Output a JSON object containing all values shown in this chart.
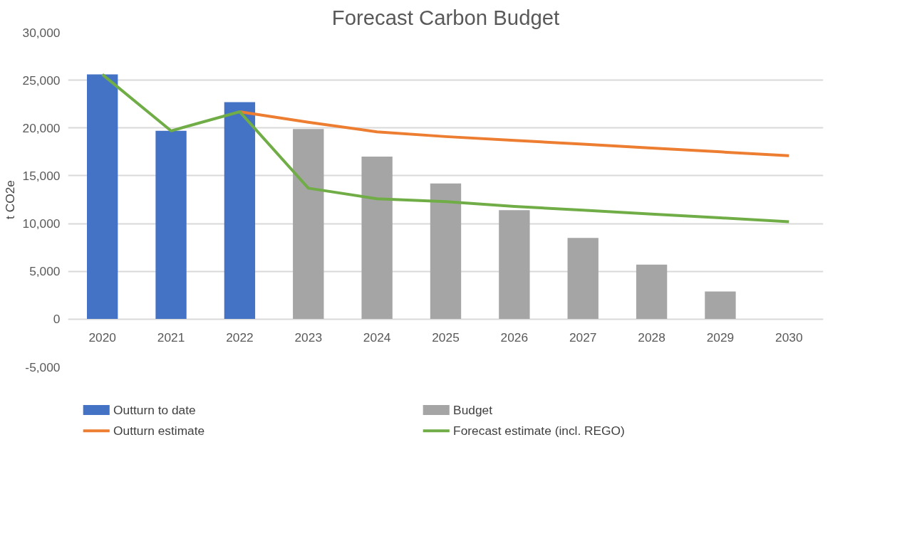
{
  "chart_data": {
    "type": "bar",
    "title": "Forecast Carbon Budget",
    "ylabel": "t CO2e",
    "categories": [
      "2020",
      "2021",
      "2022",
      "2023",
      "2024",
      "2025",
      "2026",
      "2027",
      "2028",
      "2029",
      "2030"
    ],
    "series": [
      {
        "name": "Outturn to date",
        "color": "#4472c4",
        "values": [
          25600,
          19700,
          22700,
          null,
          null,
          null,
          null,
          null,
          null,
          null,
          null
        ]
      },
      {
        "name": "Budget",
        "color": "#a5a5a5",
        "values": [
          null,
          null,
          null,
          19900,
          17000,
          14200,
          11400,
          8500,
          5700,
          2900,
          0
        ]
      },
      {
        "name": "Outturn estimate",
        "type": "line",
        "color": "#ed7d31",
        "values": [
          null,
          null,
          21700,
          20600,
          19600,
          19100,
          18700,
          18300,
          17900,
          17500,
          17100
        ]
      },
      {
        "name": "Forecast estimate (incl. REGO)",
        "type": "line",
        "color": "#70ad47",
        "values": [
          25600,
          19700,
          21700,
          13700,
          12600,
          12300,
          11800,
          11400,
          11000,
          10600,
          10200
        ]
      }
    ],
    "ylim": [
      -5000,
      30000
    ],
    "yticks": [
      {
        "value": -5000,
        "label": "-5,000"
      },
      {
        "value": 0,
        "label": "0"
      },
      {
        "value": 5000,
        "label": "5,000"
      },
      {
        "value": 10000,
        "label": "10,000"
      },
      {
        "value": 15000,
        "label": "15,000"
      },
      {
        "value": 20000,
        "label": "20,000"
      },
      {
        "value": 25000,
        "label": "25,000"
      },
      {
        "value": 30000,
        "label": "30,000"
      }
    ],
    "grid": "y",
    "legend": "bottom"
  }
}
